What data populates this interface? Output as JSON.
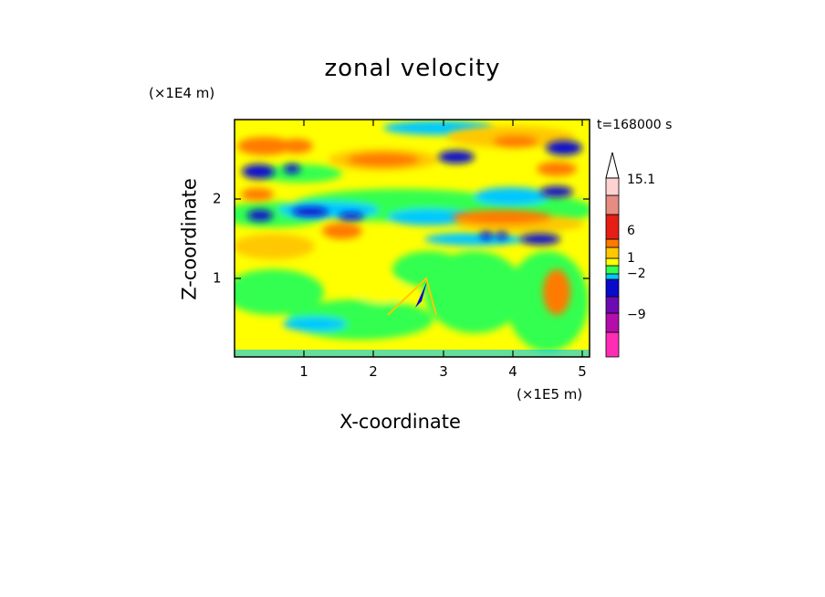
{
  "chart_data": {
    "type": "heatmap",
    "title": "zonal velocity",
    "xlabel": "X-coordinate",
    "ylabel": "Z-coordinate",
    "x_multiplier": "(×1E5 m)",
    "y_multiplier": "(×1E4 m)",
    "time_label": "t=168000 s",
    "xlim": [
      0,
      5.1
    ],
    "ylim": [
      0,
      3.0
    ],
    "x_ticks": [
      "1",
      "2",
      "3",
      "4",
      "5"
    ],
    "y_ticks": [
      "1",
      "2"
    ],
    "colorbar": {
      "labels": [
        "15.1",
        "6",
        "1",
        "−2",
        "−9"
      ],
      "colors": [
        "#ff2db4",
        "#b40eaa",
        "#6e0ab4",
        "#0a0acd",
        "#00c8ff",
        "#32ff50",
        "#ffff00",
        "#ffc800",
        "#ff7a00",
        "#e61e14",
        "#e68c82",
        "#ffd2d2",
        "#ffffff"
      ]
    },
    "field_colors": {
      "magenta": "#ff2db4",
      "purple": "#b40eaa",
      "violet": "#6e0ab4",
      "blue": "#0a0acd",
      "cyan": "#00c8ff",
      "green": "#32ff50",
      "yellow": "#ffff00",
      "gold": "#ffc800",
      "orange": "#ff7a00",
      "red": "#e61e14"
    },
    "features": [
      {
        "x": 0.35,
        "z": 2.65,
        "value": "orange"
      },
      {
        "x": 0.9,
        "z": 2.65,
        "value": "orange"
      },
      {
        "x": 0.35,
        "z": 2.35,
        "value": "blue"
      },
      {
        "x": 0.8,
        "z": 2.4,
        "value": "blue"
      },
      {
        "x": 0.3,
        "z": 2.05,
        "value": "orange"
      },
      {
        "x": 0.6,
        "z": 2.05,
        "value": "cyan"
      },
      {
        "x": 0.35,
        "z": 1.8,
        "value": "blue"
      },
      {
        "x": 1.0,
        "z": 1.8,
        "value": "blue"
      },
      {
        "x": 1.5,
        "z": 1.75,
        "value": "blue"
      },
      {
        "x": 2.4,
        "z": 2.45,
        "value": "orange"
      },
      {
        "x": 3.15,
        "z": 2.55,
        "value": "blue"
      },
      {
        "x": 4.7,
        "z": 2.65,
        "value": "blue"
      },
      {
        "x": 4.05,
        "z": 2.6,
        "value": "orange"
      },
      {
        "x": 4.35,
        "z": 2.4,
        "value": "orange"
      },
      {
        "x": 4.65,
        "z": 2.05,
        "value": "blue"
      },
      {
        "x": 3.6,
        "z": 1.8,
        "value": "orange"
      },
      {
        "x": 4.55,
        "z": 1.5,
        "value": "blue"
      },
      {
        "x": 1.55,
        "z": 1.6,
        "value": "orange"
      },
      {
        "x": 2.75,
        "z": 0.85,
        "value": "blue"
      }
    ]
  }
}
